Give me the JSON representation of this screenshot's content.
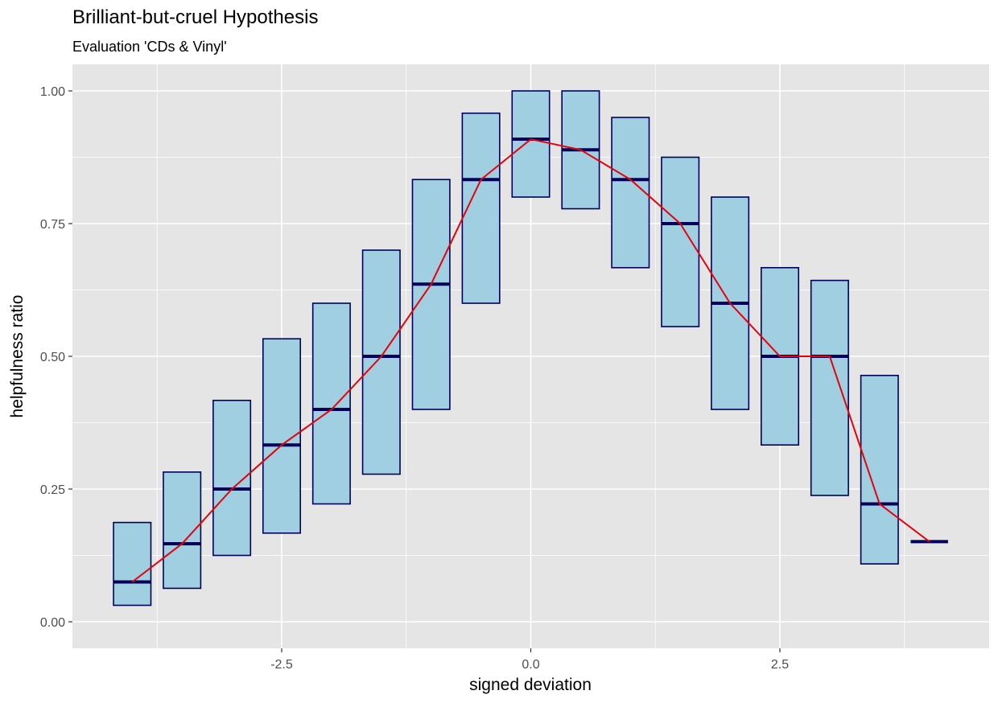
{
  "chart_data": {
    "type": "boxplot",
    "title": "Brilliant-but-cruel Hypothesis",
    "subtitle": "Evaluation 'CDs & Vinyl'",
    "xlabel": "signed deviation",
    "ylabel": "helpfulness ratio",
    "xlim": [
      -4.6,
      4.6
    ],
    "ylim": [
      -0.05,
      1.05
    ],
    "x_ticks": [
      -2.5,
      0.0,
      2.5
    ],
    "x_tick_labels": [
      "-2.5",
      "0.0",
      "2.5"
    ],
    "y_ticks": [
      0.0,
      0.25,
      0.5,
      0.75,
      1.0
    ],
    "y_tick_labels": [
      "0.00",
      "0.25",
      "0.50",
      "0.75",
      "1.00"
    ],
    "grid": true,
    "box_width": 0.375,
    "boxes": [
      {
        "x": -4.0,
        "lower": 0.031,
        "median": 0.075,
        "upper": 0.187
      },
      {
        "x": -3.5,
        "lower": 0.063,
        "median": 0.147,
        "upper": 0.282
      },
      {
        "x": -3.0,
        "lower": 0.125,
        "median": 0.25,
        "upper": 0.417
      },
      {
        "x": -2.5,
        "lower": 0.167,
        "median": 0.333,
        "upper": 0.533
      },
      {
        "x": -2.0,
        "lower": 0.222,
        "median": 0.4,
        "upper": 0.6
      },
      {
        "x": -1.5,
        "lower": 0.278,
        "median": 0.5,
        "upper": 0.7
      },
      {
        "x": -1.0,
        "lower": 0.4,
        "median": 0.636,
        "upper": 0.833
      },
      {
        "x": -0.5,
        "lower": 0.6,
        "median": 0.833,
        "upper": 0.958
      },
      {
        "x": 0.0,
        "lower": 0.8,
        "median": 0.909,
        "upper": 1.0
      },
      {
        "x": 0.5,
        "lower": 0.778,
        "median": 0.889,
        "upper": 1.0
      },
      {
        "x": 1.0,
        "lower": 0.667,
        "median": 0.833,
        "upper": 0.95
      },
      {
        "x": 1.5,
        "lower": 0.556,
        "median": 0.75,
        "upper": 0.875
      },
      {
        "x": 2.0,
        "lower": 0.4,
        "median": 0.6,
        "upper": 0.8
      },
      {
        "x": 2.5,
        "lower": 0.333,
        "median": 0.5,
        "upper": 0.667
      },
      {
        "x": 3.0,
        "lower": 0.238,
        "median": 0.5,
        "upper": 0.643
      },
      {
        "x": 3.5,
        "lower": 0.109,
        "median": 0.222,
        "upper": 0.464
      },
      {
        "x": 4.0,
        "lower": 0.151,
        "median": 0.151,
        "upper": 0.151
      }
    ],
    "line": {
      "x": [
        -4.0,
        -3.5,
        -3.0,
        -2.5,
        -2.0,
        -1.5,
        -1.0,
        -0.5,
        0.0,
        0.5,
        1.0,
        1.5,
        2.0,
        2.5,
        3.0,
        3.5,
        4.0
      ],
      "y": [
        0.075,
        0.147,
        0.25,
        0.333,
        0.4,
        0.5,
        0.636,
        0.833,
        0.909,
        0.889,
        0.833,
        0.75,
        0.6,
        0.5,
        0.5,
        0.222,
        0.151
      ]
    },
    "colors": {
      "panel": "#e5e5e5",
      "grid": "#ffffff",
      "box_fill": "#a1cfe2",
      "box_stroke": "#00005a",
      "median": "#00005a",
      "line": "#e8000b",
      "tick_text": "#4d4d4d"
    }
  }
}
